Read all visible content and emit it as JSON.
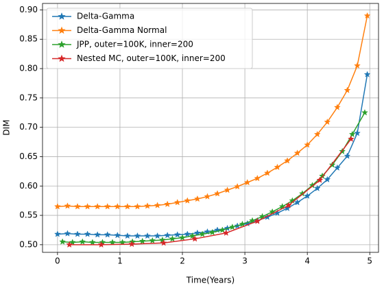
{
  "chart_data": {
    "type": "line",
    "x_label": "Time(Years)",
    "y_label": "DIM",
    "xlim": [
      -0.24,
      5.14
    ],
    "ylim": [
      0.487,
      0.911
    ],
    "xticks": [
      0,
      1,
      2,
      3,
      4,
      5
    ],
    "yticks": [
      {
        "value": 0.5,
        "label": "0.50"
      },
      0.55,
      {
        "value": 0.6,
        "label": "0.60"
      },
      0.65,
      {
        "value": 0.7,
        "label": "0.70"
      },
      0.75,
      {
        "value": 0.8,
        "label": "0.80"
      },
      0.85,
      {
        "value": 0.9,
        "label": "0.90"
      }
    ],
    "grid": true,
    "legend": "upper-left",
    "series": [
      {
        "name": "Delta-Gamma",
        "color": "#1f77b4",
        "x": [
          0,
          0.16,
          0.32,
          0.48,
          0.64,
          0.8,
          0.96,
          1.12,
          1.28,
          1.44,
          1.6,
          1.76,
          1.92,
          2.08,
          2.24,
          2.4,
          2.56,
          2.72,
          2.88,
          3.04,
          3.2,
          3.36,
          3.52,
          3.68,
          3.84,
          4.0,
          4.16,
          4.32,
          4.48,
          4.64,
          4.8,
          4.96
        ],
        "values": [
          0.518,
          0.519,
          0.518,
          0.518,
          0.517,
          0.517,
          0.516,
          0.515,
          0.515,
          0.515,
          0.515,
          0.516,
          0.517,
          0.518,
          0.52,
          0.522,
          0.525,
          0.528,
          0.532,
          0.536,
          0.541,
          0.547,
          0.554,
          0.562,
          0.572,
          0.583,
          0.596,
          0.611,
          0.631,
          0.651,
          0.69,
          0.79
        ]
      },
      {
        "name": "Delta-Gamma Normal",
        "color": "#ff7f0e",
        "x": [
          0,
          0.16,
          0.32,
          0.48,
          0.64,
          0.8,
          0.96,
          1.12,
          1.28,
          1.44,
          1.6,
          1.76,
          1.92,
          2.08,
          2.24,
          2.4,
          2.56,
          2.72,
          2.88,
          3.04,
          3.2,
          3.36,
          3.52,
          3.68,
          3.84,
          4.0,
          4.16,
          4.32,
          4.48,
          4.64,
          4.8,
          4.96
        ],
        "values": [
          0.565,
          0.566,
          0.565,
          0.565,
          0.565,
          0.565,
          0.565,
          0.565,
          0.565,
          0.566,
          0.567,
          0.569,
          0.572,
          0.575,
          0.578,
          0.582,
          0.587,
          0.593,
          0.599,
          0.606,
          0.613,
          0.622,
          0.632,
          0.643,
          0.656,
          0.67,
          0.688,
          0.709,
          0.734,
          0.763,
          0.805,
          0.89
        ]
      },
      {
        "name": "JPP, outer=100K, inner=200",
        "color": "#2ca02c",
        "x": [
          0.08,
          0.24,
          0.4,
          0.56,
          0.72,
          0.88,
          1.04,
          1.2,
          1.36,
          1.52,
          1.68,
          1.84,
          2.0,
          2.16,
          2.32,
          2.48,
          2.64,
          2.8,
          2.96,
          3.12,
          3.28,
          3.44,
          3.6,
          3.76,
          3.92,
          4.08,
          4.24,
          4.4,
          4.56,
          4.72,
          4.92
        ],
        "values": [
          0.505,
          0.504,
          0.505,
          0.504,
          0.504,
          0.504,
          0.504,
          0.505,
          0.506,
          0.507,
          0.508,
          0.51,
          0.512,
          0.515,
          0.518,
          0.521,
          0.525,
          0.53,
          0.535,
          0.541,
          0.548,
          0.556,
          0.565,
          0.575,
          0.587,
          0.601,
          0.617,
          0.636,
          0.659,
          0.688,
          0.725
        ]
      },
      {
        "name": "Nested MC, outer=100K, inner=200",
        "color": "#d62728",
        "x": [
          0.19,
          0.7,
          1.19,
          1.7,
          2.2,
          2.7,
          3.2,
          3.7,
          4.2,
          4.7
        ],
        "values": [
          0.5,
          0.5,
          0.501,
          0.503,
          0.51,
          0.52,
          0.54,
          0.567,
          0.61,
          0.68
        ]
      }
    ]
  }
}
